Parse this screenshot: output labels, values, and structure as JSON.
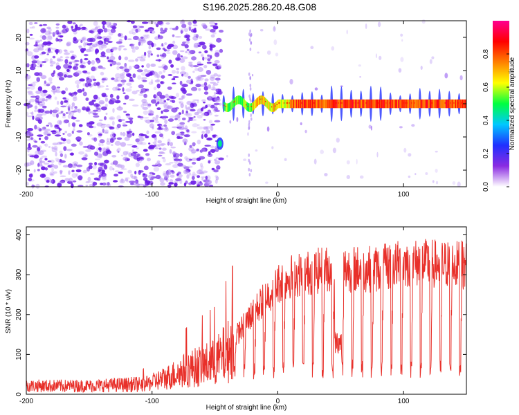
{
  "title": "S196.2025.286.20.48.G08",
  "colors": {
    "line": "#e8302a",
    "scatter": "#7a2cf0",
    "axis": "#000000"
  },
  "chart_data": [
    {
      "type": "heatmap",
      "title": "S196.2025.286.20.48.G08",
      "xlabel": "Height of straight line (km)",
      "ylabel": "Frequency (Hz)",
      "xlim": [
        -200,
        150
      ],
      "ylim": [
        -25,
        25
      ],
      "x_ticks": [
        -200,
        -100,
        0,
        100
      ],
      "x_tick_labels": [
        "-200",
        "-100",
        "0",
        "100"
      ],
      "y_ticks": [
        -20,
        -10,
        0,
        10,
        20
      ],
      "y_tick_labels": [
        "-20",
        "-10",
        "0",
        "10",
        "20"
      ],
      "colorbar": {
        "label": "Normalized spectral amplitude",
        "range": [
          0,
          1
        ],
        "ticks": [
          0,
          0.2,
          0.4,
          0.6,
          0.8
        ],
        "tick_labels": [
          "0.0",
          "0.2",
          "0.4",
          "0.6",
          "0.8"
        ],
        "colormap": [
          "#ffffff",
          "#8a2be2",
          "#2030ff",
          "#00c8ff",
          "#00ff40",
          "#ffff00",
          "#ff8000",
          "#ff0000",
          "#ff0090"
        ]
      },
      "noise_region": {
        "x": [
          -200,
          -45
        ],
        "y": [
          -25,
          25
        ],
        "amplitude": 0.2
      },
      "tone_track": {
        "x_start": -43,
        "x_end": 150,
        "frequency": 0,
        "amplitude": 0.9
      },
      "early_blob": {
        "x": -46,
        "y": -12,
        "amplitude": 0.45
      }
    },
    {
      "type": "line",
      "xlabel": "Height of straight line (km)",
      "ylabel": "SNR (10 * v/v)",
      "xlim": [
        -200,
        150
      ],
      "ylim": [
        0,
        420
      ],
      "x_ticks": [
        -200,
        -100,
        0,
        100
      ],
      "x_tick_labels": [
        "-200",
        "-100",
        "0",
        "100"
      ],
      "y_ticks": [
        0,
        100,
        200,
        300,
        400
      ],
      "y_tick_labels": [
        "0",
        "100",
        "200",
        "300",
        "400"
      ],
      "envelope": [
        {
          "x": -200,
          "y": 20
        },
        {
          "x": -150,
          "y": 20
        },
        {
          "x": -110,
          "y": 25
        },
        {
          "x": -90,
          "y": 50
        },
        {
          "x": -70,
          "y": 80
        },
        {
          "x": -50,
          "y": 100
        },
        {
          "x": -35,
          "y": 150
        },
        {
          "x": -20,
          "y": 220
        },
        {
          "x": -10,
          "y": 260
        },
        {
          "x": 0,
          "y": 300
        },
        {
          "x": 10,
          "y": 320
        },
        {
          "x": 25,
          "y": 330
        },
        {
          "x": 40,
          "y": 340
        },
        {
          "x": 60,
          "y": 340
        },
        {
          "x": 80,
          "y": 340
        },
        {
          "x": 100,
          "y": 355
        },
        {
          "x": 120,
          "y": 355
        },
        {
          "x": 150,
          "y": 350
        }
      ],
      "dip_level": 60,
      "dip_period": 7.8,
      "dips_start_x": -35,
      "max_value": 410
    }
  ]
}
